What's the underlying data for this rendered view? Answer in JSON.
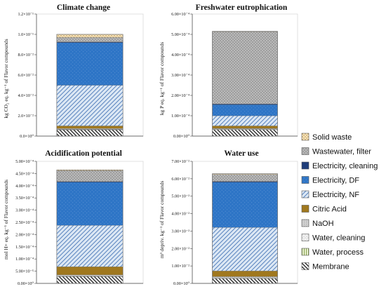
{
  "legend": {
    "entries": [
      {
        "key": "solid_waste",
        "label": "Solid waste"
      },
      {
        "key": "wastewater_filter",
        "label": "Wastewater, filter"
      },
      {
        "key": "electricity_cleaning",
        "label": "Electricity, cleaning"
      },
      {
        "key": "electricity_df",
        "label": "Electricity, DF"
      },
      {
        "key": "electricity_nf",
        "label": "Electricity, NF"
      },
      {
        "key": "citric_acid",
        "label": "Citric Acid"
      },
      {
        "key": "naoh",
        "label": "NaOH"
      },
      {
        "key": "water_cleaning",
        "label": "Water, cleaning"
      },
      {
        "key": "water_process",
        "label": "Water, process"
      },
      {
        "key": "membrane",
        "label": "Membrane"
      }
    ]
  },
  "colors": {
    "membrane": "#3a3a3a",
    "water_process": "#9bbb59",
    "water_cleaning": "#dcdcdc",
    "naoh": "#bfbfbf",
    "citric_acid": "#a0781e",
    "electricity_nf": "#8fb2d8",
    "electricity_df": "#2e75c6",
    "electricity_cleaning": "#1f3e7a",
    "wastewater_filter": "#a8a8a8",
    "solid_waste": "#f3d9a4",
    "nf_fill": "#dbe7f4",
    "df_fill": "#2e75c6",
    "orange_band": "#e07b39",
    "pink_band": "#ff66cc"
  },
  "chart_data": [
    {
      "type": "bar",
      "stacked": true,
      "title": "Climate change",
      "ylabel": "kg CO₂ eq. kg⁻¹ of Flavor compounds",
      "ylim": [
        0,
        0.12
      ],
      "yticks": [
        0,
        0.02,
        0.04,
        0.06,
        0.08,
        0.1,
        0.12
      ],
      "ytick_labels": [
        "0.0×10⁰",
        "2.0×10⁻²",
        "4.0×10⁻²",
        "6.0×10⁻²",
        "8.0×10⁻²",
        "1.0×10⁻¹",
        "1.2×10⁻¹"
      ],
      "series": [
        {
          "key": "membrane",
          "value": 0.0062
        },
        {
          "key": "water_process",
          "value": 0.0002
        },
        {
          "key": "water_cleaning",
          "value": 0.0003
        },
        {
          "key": "naoh",
          "value": 0.0008
        },
        {
          "key": "citric_acid",
          "value": 0.0025
        },
        {
          "key": "electricity_nf",
          "value": 0.04
        },
        {
          "key": "electricity_df",
          "value": 0.042
        },
        {
          "key": "electricity_cleaning",
          "value": 0.0005
        },
        {
          "key": "wastewater_filter",
          "value": 0.0045
        },
        {
          "key": "solid_waste",
          "value": 0.003
        }
      ]
    },
    {
      "type": "bar",
      "stacked": true,
      "title": "Freshwater eutrophication",
      "ylabel": "kg P eq. kg⁻¹ of Flavor compounds",
      "ylim": [
        0,
        0.0006
      ],
      "yticks": [
        0,
        0.0001,
        0.0002,
        0.0003,
        0.0004,
        0.0005,
        0.0006
      ],
      "ytick_labels": [
        "0.00×10⁰",
        "1.00×10⁻⁴",
        "2.00×10⁻⁴",
        "3.00×10⁻⁴",
        "4.00×10⁻⁴",
        "5.00×10⁻⁴",
        "6.00×10⁻⁴"
      ],
      "series": [
        {
          "key": "membrane",
          "value": 3.2e-05
        },
        {
          "key": "water_process",
          "value": 1e-06
        },
        {
          "key": "water_cleaning",
          "value": 2e-06
        },
        {
          "key": "naoh",
          "value": 3e-06
        },
        {
          "key": "citric_acid",
          "value": 1.2e-05
        },
        {
          "key": "electricity_nf",
          "value": 5e-05
        },
        {
          "key": "electricity_df",
          "value": 5.5e-05
        },
        {
          "key": "electricity_cleaning",
          "value": 3e-06
        },
        {
          "key": "wastewater_filter",
          "value": 0.000355
        },
        {
          "key": "solid_waste",
          "value": 2e-06
        }
      ]
    },
    {
      "type": "bar",
      "stacked": true,
      "title": "Acidification potential",
      "ylabel": "mol H+ eq. kg⁻¹ of Flavor compounds",
      "ylim": [
        0,
        0.0005
      ],
      "yticks": [
        0,
        5e-05,
        0.0001,
        0.00015,
        0.0002,
        0.00025,
        0.0003,
        0.00035,
        0.0004,
        0.00045,
        0.0005
      ],
      "ytick_labels": [
        "0.00×10⁰",
        "5.00×10⁻⁵",
        "1.00×10⁻⁴",
        "1.50×10⁻⁴",
        "2.00×10⁻⁴",
        "2.50×10⁻⁴",
        "3.00×10⁻⁴",
        "3.50×10⁻⁴",
        "4.00×10⁻⁴",
        "4.50×10⁻⁴",
        "5.00×10⁻⁴"
      ],
      "series": [
        {
          "key": "membrane",
          "value": 2.8e-05
        },
        {
          "key": "water_process",
          "value": 1e-06
        },
        {
          "key": "water_cleaning",
          "value": 2e-06
        },
        {
          "key": "naoh",
          "value": 4e-06
        },
        {
          "key": "citric_acid",
          "value": 3.3e-05
        },
        {
          "key": "electricity_nf",
          "value": 0.00017
        },
        {
          "key": "electricity_df",
          "value": 0.000177
        },
        {
          "key": "electricity_cleaning",
          "value": 2e-06
        },
        {
          "key": "wastewater_filter",
          "value": 4.5e-05
        },
        {
          "key": "solid_waste",
          "value": 3e-06
        }
      ]
    },
    {
      "type": "bar",
      "stacked": true,
      "title": "Water use",
      "ylabel": "m³ depriv. kg⁻¹ of Flavor compounds",
      "ylim": [
        0,
        0.07
      ],
      "yticks": [
        0,
        0.01,
        0.02,
        0.03,
        0.04,
        0.05,
        0.06,
        0.07
      ],
      "ytick_labels": [
        "0.00×10⁰",
        "1.00×10⁻²",
        "2.00×10⁻²",
        "3.00×10⁻²",
        "4.00×10⁻²",
        "5.00×10⁻²",
        "6.00×10⁻²",
        "7.00×10⁻²"
      ],
      "series": [
        {
          "key": "membrane",
          "value": 0.0028
        },
        {
          "key": "water_process",
          "value": 0.0002
        },
        {
          "key": "water_cleaning",
          "value": 0.0005
        },
        {
          "key": "naoh",
          "value": 0.0004
        },
        {
          "key": "citric_acid",
          "value": 0.0032
        },
        {
          "key": "electricity_nf",
          "value": 0.025
        },
        {
          "key": "electricity_df",
          "value": 0.026
        },
        {
          "key": "electricity_cleaning",
          "value": 0.0004
        },
        {
          "key": "wastewater_filter",
          "value": 0.004
        },
        {
          "key": "solid_waste",
          "value": 0.0004
        }
      ]
    }
  ]
}
